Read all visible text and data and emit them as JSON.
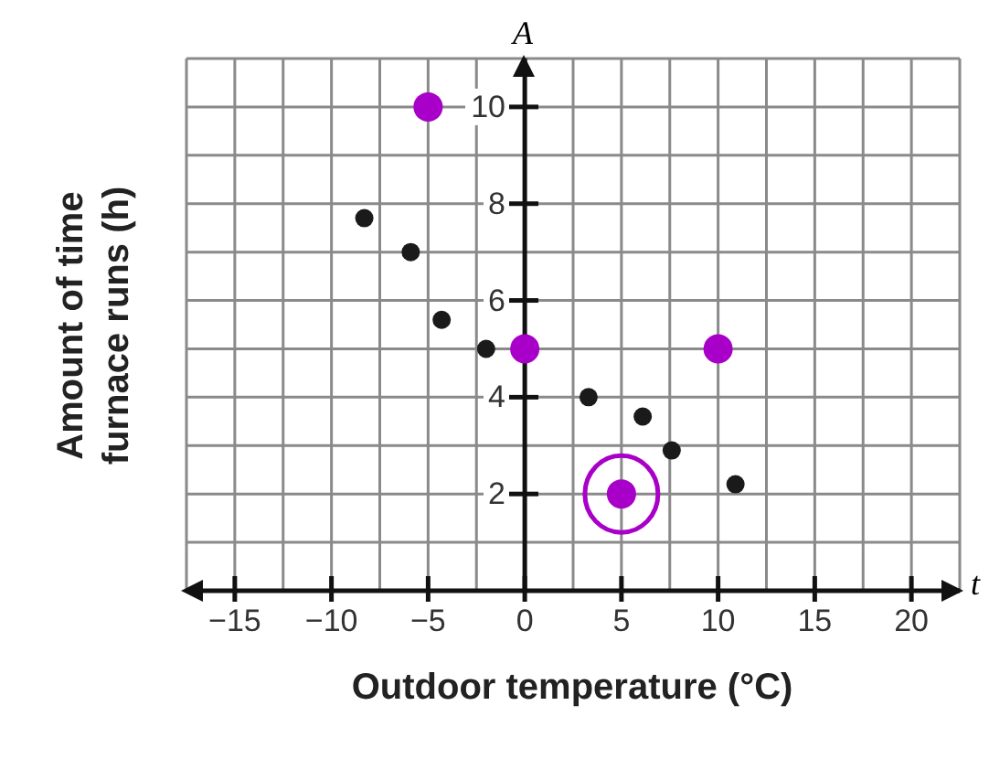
{
  "chart_data": {
    "type": "scatter",
    "xlabel": "Outdoor temperature (°C)",
    "ylabel": "Amount of time furnace runs (h)",
    "annotations": [
      "A",
      "t"
    ],
    "xlim": [
      -17.5,
      22.5
    ],
    "ylim": [
      0,
      11
    ],
    "xticks": [
      {
        "value": -17.5,
        "label": null
      },
      {
        "value": -15,
        "label": "−15"
      },
      {
        "value": -12.5,
        "label": null
      },
      {
        "value": -10,
        "label": "−10"
      },
      {
        "value": -7.5,
        "label": null
      },
      {
        "value": -5,
        "label": "−5"
      },
      {
        "value": -2.5,
        "label": null
      },
      0,
      {
        "value": 2.5,
        "label": null
      },
      5,
      {
        "value": 7.5,
        "label": null
      },
      10,
      {
        "value": 12.5,
        "label": null
      },
      15,
      {
        "value": 17.5,
        "label": null
      },
      20,
      {
        "value": 22.5,
        "label": null
      }
    ],
    "yticks": [
      {
        "value": 0,
        "label": null
      },
      {
        "value": 1,
        "label": null
      },
      2,
      {
        "value": 3,
        "label": null
      },
      4,
      {
        "value": 5,
        "label": null
      },
      6,
      {
        "value": 7,
        "label": null
      },
      8,
      {
        "value": 9,
        "label": null
      },
      10,
      {
        "value": 11,
        "label": null
      }
    ],
    "grid": true,
    "legend": false,
    "marker": "circle",
    "series": [
      {
        "color": "#1a1a1a",
        "x": [
          -8.3,
          -5.9,
          -4.3,
          -2.0,
          3.3,
          6.1,
          7.6,
          10.9
        ],
        "values": [
          7.7,
          7.0,
          5.6,
          5.0,
          4.0,
          3.6,
          2.9,
          2.2
        ]
      },
      {
        "color": "#a800c8",
        "x": [
          -5,
          0,
          10,
          5
        ],
        "values": [
          10,
          5,
          5,
          2
        ]
      }
    ]
  }
}
